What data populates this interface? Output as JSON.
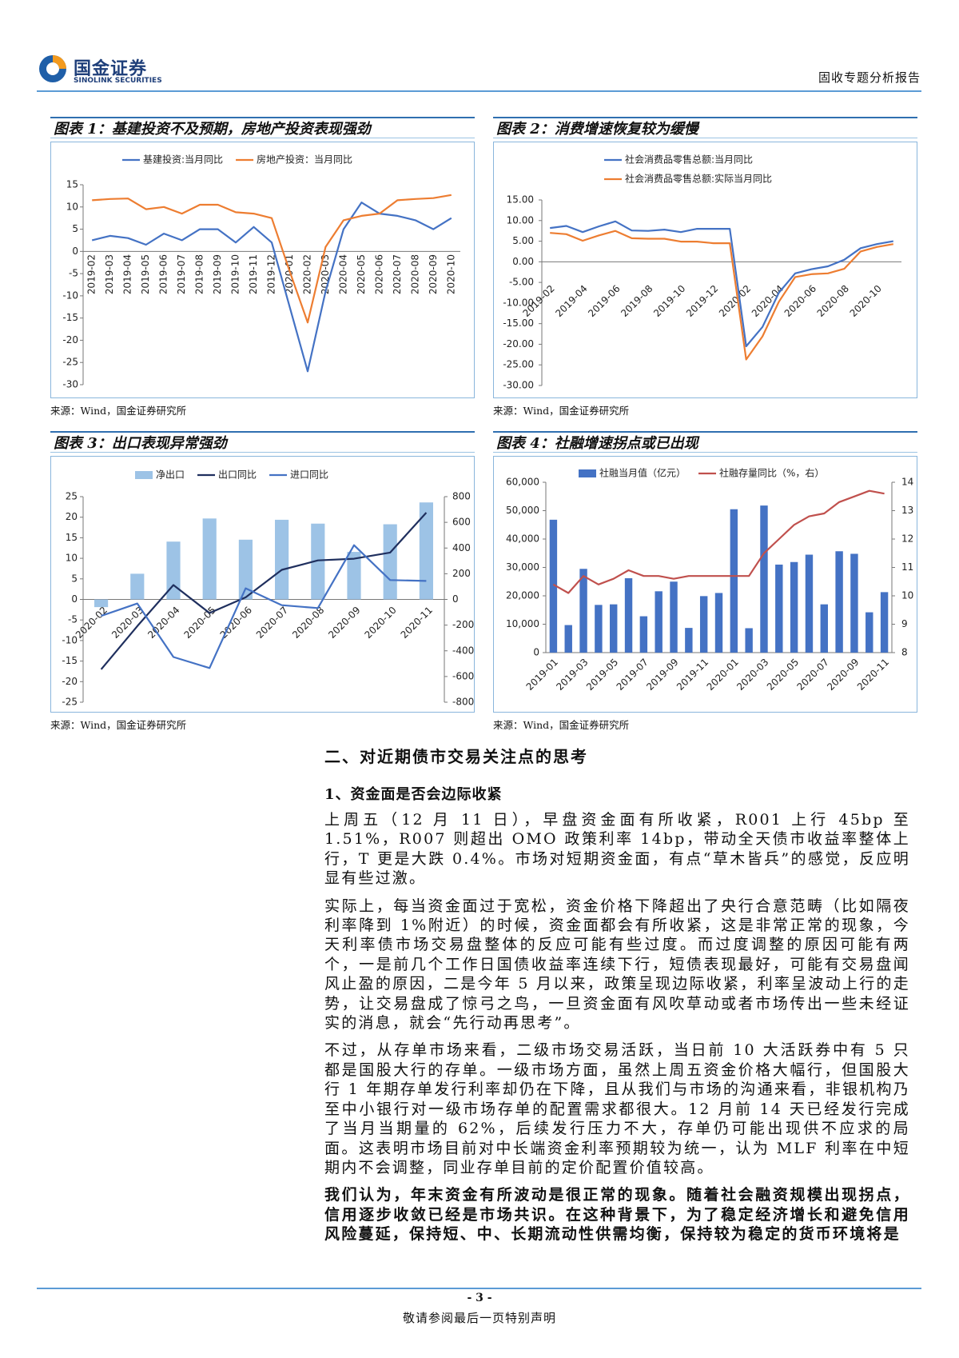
{
  "header": {
    "company": "国金证券",
    "company_en": "SINOLINK SECURITIES",
    "report_type": "固收专题分析报告"
  },
  "chart_data": [
    {
      "type": "line",
      "title": "图表 1：基建投资不及预期，房地产投资表现强劲",
      "source": "来源：Wind，国金证券研究所",
      "legend": "top",
      "categories": [
        "2019-02",
        "2019-03",
        "2019-04",
        "2019-05",
        "2019-06",
        "2019-07",
        "2019-08",
        "2019-09",
        "2019-10",
        "2019-11",
        "2019-12",
        "2020-01",
        "2020-02",
        "2020-03",
        "2020-04",
        "2020-05",
        "2020-06",
        "2020-07",
        "2020-08",
        "2020-09",
        "2020-10"
      ],
      "series": [
        {
          "name": "基建投资:当月同比",
          "color": "#4472c4",
          "values": [
            2.5,
            3.5,
            3,
            1.5,
            4,
            2.5,
            5,
            5,
            2,
            5.5,
            2,
            -12.5,
            -27,
            -9,
            5,
            11,
            8.5,
            8,
            7,
            5,
            7.5
          ]
        },
        {
          "name": "房地产投资：当月同比",
          "color": "#ed7d31",
          "values": [
            11.5,
            11.8,
            11.9,
            9.5,
            10,
            8.5,
            10.5,
            10.5,
            8.8,
            8.5,
            7.5,
            -4.5,
            -16,
            1,
            7,
            8,
            8.5,
            11.5,
            11.8,
            12,
            12.7
          ]
        }
      ],
      "ylim": [
        -30,
        15
      ],
      "yticks": [
        -30,
        -25,
        -20,
        -15,
        -10,
        -5,
        0,
        5,
        10,
        15
      ]
    },
    {
      "type": "line",
      "title": "图表 2：消费增速恢复较为缓慢",
      "source": "来源：Wind，国金证券研究所",
      "legend": "top",
      "categories": [
        "2019-02",
        null,
        "2019-04",
        null,
        "2019-06",
        null,
        "2019-08",
        null,
        "2019-10",
        null,
        "2019-12",
        null,
        "2020-02",
        null,
        "2020-04",
        null,
        "2020-06",
        null,
        "2020-08",
        null,
        "2020-10",
        null
      ],
      "series": [
        {
          "name": "社会消费品零售总额:当月同比",
          "color": "#4472c4",
          "values": [
            8.2,
            8.7,
            7.2,
            8.6,
            9.8,
            7.6,
            7.5,
            7.8,
            7.2,
            8,
            8,
            8,
            -20.5,
            -15.8,
            -7.5,
            -2.8,
            -1.8,
            -1.1,
            0.5,
            3.3,
            4.3,
            5
          ]
        },
        {
          "name": "社会消费品零售总额:实际当月同比",
          "color": "#ed7d31",
          "values": [
            7,
            6.7,
            5.1,
            6.4,
            7.5,
            5.7,
            5.6,
            5.6,
            4.9,
            4.9,
            4.5,
            4.5,
            -23.7,
            -18.1,
            -9.7,
            -3.7,
            -3,
            -2.8,
            -1.7,
            2.5,
            3.6,
            4.3
          ]
        }
      ],
      "ylim": [
        -30,
        15
      ],
      "yticks": [
        {
          "value": -30,
          "label": "-30.00"
        },
        {
          "value": -25,
          "label": "-25.00"
        },
        {
          "value": -20,
          "label": "-20.00"
        },
        {
          "value": -15,
          "label": "-15.00"
        },
        {
          "value": -10,
          "label": "-10.00"
        },
        {
          "value": -5,
          "label": "-5.00"
        },
        {
          "value": 0,
          "label": "0.00"
        },
        {
          "value": 5,
          "label": "5.00"
        },
        {
          "value": 10,
          "label": "10.00"
        },
        {
          "value": 15,
          "label": "15.00"
        }
      ]
    },
    {
      "type": "combo",
      "title": "图表 3：出口表现异常强劲",
      "source": "来源：Wind，国金证券研究所",
      "legend": "top",
      "categories": [
        "2020-02",
        "2020-03",
        "2020-04",
        "2020-05",
        "2020-06",
        "2020-07",
        "2020-08",
        "2020-09",
        "2020-10",
        "2020-11"
      ],
      "series": [
        {
          "name": "净出口",
          "type": "bar",
          "axis": "y2",
          "color": "#9dc3e6",
          "values": [
            -60,
            200,
            450,
            630,
            465,
            620,
            590,
            370,
            585,
            755
          ]
        },
        {
          "name": "出口同比",
          "type": "line",
          "color": "#1f2f5e",
          "values": [
            -17,
            -6.5,
            3.5,
            -3.3,
            0.5,
            7.2,
            9.5,
            9.9,
            11.4,
            21.1
          ]
        },
        {
          "name": "进口同比",
          "type": "line",
          "color": "#4472c4",
          "values": [
            -4,
            -1,
            -14,
            -16.7,
            2.7,
            -1.4,
            -2.1,
            13.2,
            4.7,
            4.5
          ]
        }
      ],
      "ylim": [
        -25,
        25
      ],
      "yticks": [
        -25,
        -20,
        -15,
        -10,
        -5,
        0,
        5,
        10,
        15,
        20,
        25
      ],
      "y2lim": [
        -800,
        800
      ],
      "y2ticks": [
        -800,
        -600,
        -400,
        -200,
        0,
        200,
        400,
        600,
        800
      ]
    },
    {
      "type": "combo",
      "title": "图表 4：社融增速拐点或已出现",
      "source": "来源：Wind，国金证券研究所",
      "legend": "top",
      "categories": [
        "2019-01",
        null,
        "2019-03",
        null,
        "2019-05",
        null,
        "2019-07",
        null,
        "2019-09",
        null,
        "2019-11",
        null,
        "2020-01",
        null,
        "2020-03",
        null,
        "2020-05",
        null,
        "2020-07",
        null,
        "2020-09",
        null,
        "2020-11"
      ],
      "series": [
        {
          "name": "社融当月值（亿元）",
          "type": "bar",
          "color": "#4472c4",
          "values": [
            46800,
            9700,
            29500,
            16800,
            17000,
            26200,
            12800,
            21600,
            25000,
            8700,
            19900,
            21000,
            50500,
            8600,
            51800,
            31000,
            31900,
            34500,
            17000,
            35700,
            34800,
            14200,
            21300
          ]
        },
        {
          "name": "社融存量同比（%，右）",
          "type": "line",
          "axis": "y2",
          "color": "#c0504d",
          "values": [
            10.4,
            10.1,
            10.7,
            10.4,
            10.6,
            10.9,
            10.7,
            10.7,
            10.6,
            10.7,
            10.7,
            10.7,
            10.7,
            10.7,
            11.5,
            12,
            12.5,
            12.8,
            12.9,
            13.3,
            13.5,
            13.7,
            13.6
          ]
        }
      ],
      "ylim": [
        0,
        60000
      ],
      "yticks": [
        0,
        {
          "value": 10000,
          "label": "10,000"
        },
        {
          "value": 20000,
          "label": "20,000"
        },
        {
          "value": 30000,
          "label": "30,000"
        },
        {
          "value": 40000,
          "label": "40,000"
        },
        {
          "value": 50000,
          "label": "50,000"
        },
        {
          "value": 60000,
          "label": "60,000"
        }
      ],
      "y2lim": [
        8,
        14
      ],
      "y2ticks": [
        8,
        9,
        10,
        11,
        12,
        13,
        14
      ]
    }
  ],
  "section": {
    "heading": "二、对近期债市交易关注点的思考",
    "subheading": "1、资金面是否会边际收紧",
    "paragraphs": [
      "上周五（12 月 11 日），早盘资金面有所收紧，R001 上行 45bp 至 1.51%，R007 则超出 OMO 政策利率 14bp，带动全天债市收益率整体上行，T 更是大跌 0.4%。市场对短期资金面，有点“草木皆兵”的感觉，反应明显有些过激。",
      "实际上，每当资金面过于宽松，资金价格下降超出了央行合意范畴（比如隔夜利率降到 1%附近）的时候，资金面都会有所收紧，这是非常正常的现象，今天利率债市场交易盘整体的反应可能有些过度。而过度调整的原因可能有两个，一是前几个工作日国债收益率连续下行，短债表现最好，可能有交易盘闻风止盈的原因，二是今年 5 月以来，政策呈现边际收紧，利率呈波动上行的走势，让交易盘成了惊弓之鸟，一旦资金面有风吹草动或者市场传出一些未经证实的消息，就会“先行动再思考”。",
      "不过，从存单市场来看，二级市场交易活跃，当日前 10 大活跃券中有 5 只都是国股大行的存单。一级市场方面，虽然上周五资金价格大幅行，但国股大行 1 年期存单发行利率却仍在下降，且从我们与市场的沟通来看，非银机构乃至中小银行对一级市场存单的配置需求都很大。12 月前 14 天已经发行完成了当月当期量的 62%，后续发行压力不大，存单仍可能出现供不应求的局面。这表明市场目前对中长端资金利率预期较为统一，认为 MLF 利率在中短期内不会调整，同业存单目前的定价配置价值较高。"
    ],
    "conclusion": "我们认为，年末资金有所波动是很正常的现象。随着社会融资规模出现拐点，信用逐步收敛已经是市场共识。在这种背景下，为了稳定经济增长和避免信用风险蔓延，保持短、中、长期流动性供需均衡，保持较为稳定的货币环境将是"
  },
  "footer": {
    "page": "- 3 -",
    "disclaimer": "敬请参阅最后一页特别声明"
  }
}
